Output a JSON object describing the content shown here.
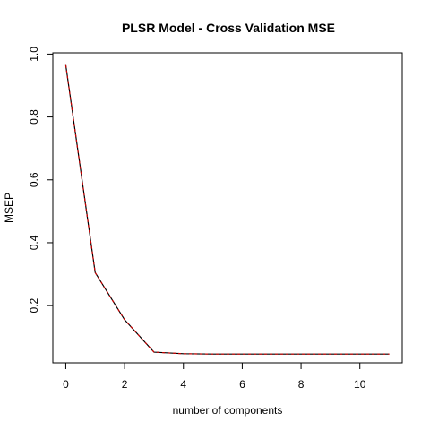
{
  "chart_data": {
    "type": "line",
    "title": "PLSR Model - Cross Validation MSE",
    "xlabel": "number of components",
    "ylabel": "MSEP",
    "xlim": [
      -0.44,
      11.44
    ],
    "ylim": [
      0.018,
      1.004
    ],
    "x_ticks": [
      0,
      2,
      4,
      6,
      8,
      10
    ],
    "y_ticks": [
      0.2,
      0.4,
      0.6,
      0.8,
      1.0
    ],
    "x_tick_labels": [
      "0",
      "2",
      "4",
      "6",
      "8",
      "10"
    ],
    "y_tick_labels": [
      "0.2",
      "0.4",
      "0.6",
      "0.8",
      "1.0"
    ],
    "grid": false,
    "series": [
      {
        "color": "#000000",
        "x": [
          0,
          1,
          2,
          3,
          4,
          5,
          6,
          7,
          8,
          9,
          10,
          11
        ],
        "values": [
          0.965,
          0.305,
          0.155,
          0.052,
          0.047,
          0.046,
          0.046,
          0.046,
          0.046,
          0.046,
          0.046,
          0.046
        ]
      },
      {
        "color": "#cc0000",
        "x": [
          0,
          1,
          2,
          3,
          4,
          5,
          6,
          7,
          8,
          9,
          10,
          11
        ],
        "values": [
          0.965,
          0.305,
          0.155,
          0.052,
          0.047,
          0.046,
          0.046,
          0.046,
          0.046,
          0.046,
          0.046,
          0.046
        ]
      }
    ]
  }
}
